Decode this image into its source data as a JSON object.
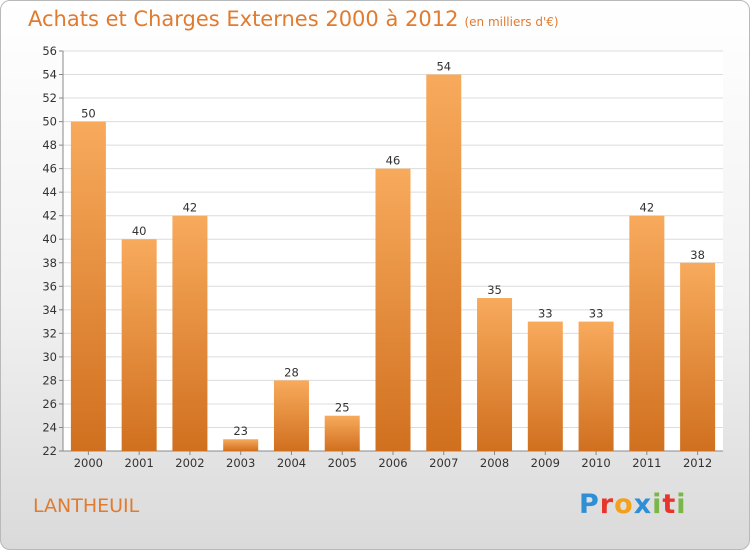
{
  "header": {
    "title": "Achats et Charges Externes 2000 à 2012",
    "subtitle": "(en milliers d'€)"
  },
  "footer": {
    "commune": "LANTHEUIL",
    "logo": "Proxiti"
  },
  "colors": {
    "title": "#e07b2f",
    "bar_top": "#f8aa5c",
    "bar_bottom": "#d0701f"
  },
  "chart_data": {
    "type": "bar",
    "title": "Achats et Charges Externes 2000 à 2012",
    "subtitle": "(en milliers d'€)",
    "categories": [
      "2000",
      "2001",
      "2002",
      "2003",
      "2004",
      "2005",
      "2006",
      "2007",
      "2008",
      "2009",
      "2010",
      "2011",
      "2012"
    ],
    "values": [
      50,
      40,
      42,
      23,
      28,
      25,
      46,
      54,
      35,
      33,
      33,
      42,
      38
    ],
    "yticks": [
      22,
      24,
      26,
      28,
      30,
      32,
      34,
      36,
      38,
      40,
      42,
      44,
      46,
      48,
      50,
      52,
      54,
      56
    ],
    "ylim": [
      22,
      56
    ],
    "grid": true,
    "data_labels": true
  }
}
